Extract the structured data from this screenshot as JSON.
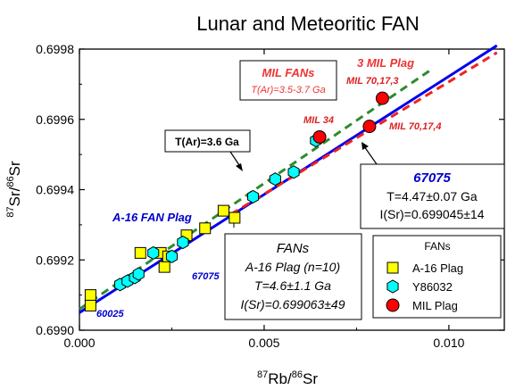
{
  "chart_data": {
    "type": "scatter",
    "title": "Lunar and Meteoritic FAN",
    "xlabel": {
      "pre": "87",
      "base": "Rb/",
      "sup2": "86",
      "base2": "Sr"
    },
    "ylabel": {
      "pre": "87",
      "base": "Sr/",
      "sup2": "86",
      "base2": "Sr"
    },
    "xlim": [
      0.0,
      0.0115
    ],
    "ylim": [
      0.699,
      0.6998
    ],
    "xticks": [
      0.0,
      0.005,
      0.01
    ],
    "xtick_labels": [
      "0.000",
      "0.005",
      "0.010"
    ],
    "yticks": [
      0.699,
      0.6992,
      0.6994,
      0.6996,
      0.6998
    ],
    "ytick_labels": [
      "0.6990",
      "0.6992",
      "0.6994",
      "0.6996",
      "0.6998"
    ],
    "grid": false,
    "series": [
      {
        "name": "A-16 Plag",
        "marker": "square",
        "color": "#ffff00",
        "points": [
          [
            0.0003,
            0.6991
          ],
          [
            0.0003,
            0.69907
          ],
          [
            0.00165,
            0.69922
          ],
          [
            0.0022,
            0.69922
          ],
          [
            0.0023,
            0.69918
          ],
          [
            0.0024,
            0.69921
          ],
          [
            0.0029,
            0.69927
          ],
          [
            0.0034,
            0.69929
          ],
          [
            0.0039,
            0.69934
          ],
          [
            0.0042,
            0.69932
          ]
        ]
      },
      {
        "name": "Y86032",
        "marker": "hexagon",
        "color": "#00ffff",
        "points": [
          [
            0.0011,
            0.69913
          ],
          [
            0.0013,
            0.69914
          ],
          [
            0.0015,
            0.69915
          ],
          [
            0.0016,
            0.69916
          ],
          [
            0.002,
            0.69922
          ],
          [
            0.0025,
            0.69921
          ],
          [
            0.0028,
            0.69925
          ],
          [
            0.0047,
            0.69938
          ],
          [
            0.0053,
            0.69943
          ],
          [
            0.0058,
            0.69945
          ],
          [
            0.0064,
            0.69954
          ]
        ]
      },
      {
        "name": "MIL Plag",
        "marker": "circle",
        "color": "#ff0000",
        "points": [
          [
            0.0065,
            0.69955
          ],
          [
            0.00785,
            0.69958
          ],
          [
            0.0082,
            0.69966
          ]
        ]
      }
    ],
    "lines": [
      {
        "id": "blue",
        "color": "#0000ee",
        "dash": "solid",
        "x": [
          0.0,
          0.0113
        ],
        "y": [
          0.69905,
          0.69981
        ]
      },
      {
        "id": "green",
        "color": "#2e8b2e",
        "dash": "dashed",
        "x": [
          0.0,
          0.0095
        ],
        "y": [
          0.69906,
          0.69974
        ]
      },
      {
        "id": "red",
        "color": "#ee2222",
        "dash": "dashed",
        "x": [
          0.0041,
          0.0113
        ],
        "y": [
          0.69933,
          0.69979
        ]
      }
    ],
    "annotations": {
      "a16_fan_plag": "A-16 FAN Plag",
      "label_60025": "60025",
      "label_67075": "67075",
      "mil34": "MIL 34",
      "mil70173": "MIL 70,17,3",
      "mil70174": "MIL 70,17,4",
      "three_mil_plag": "3 MIL Plag",
      "mil_fans": "MIL FANs",
      "mil_tar": "T(Ar)=3.5-3.7 Ga",
      "tar36": "T(Ar)=3.6 Ga",
      "box67075": {
        "title": "67075",
        "line1": "T=4.47±0.07 Ga",
        "line2": "I(Sr)=0.699045±14"
      },
      "boxfans": {
        "title": "FANs",
        "line1": "A-16 Plag (n=10)",
        "line2": "T=4.6±1.1 Ga",
        "line3": "I(Sr)=0.699063±49"
      }
    },
    "legend": {
      "title": "FANs",
      "placement": "bottom-right",
      "entries": [
        "A-16 Plag",
        "Y86032",
        "MIL Plag"
      ]
    }
  }
}
